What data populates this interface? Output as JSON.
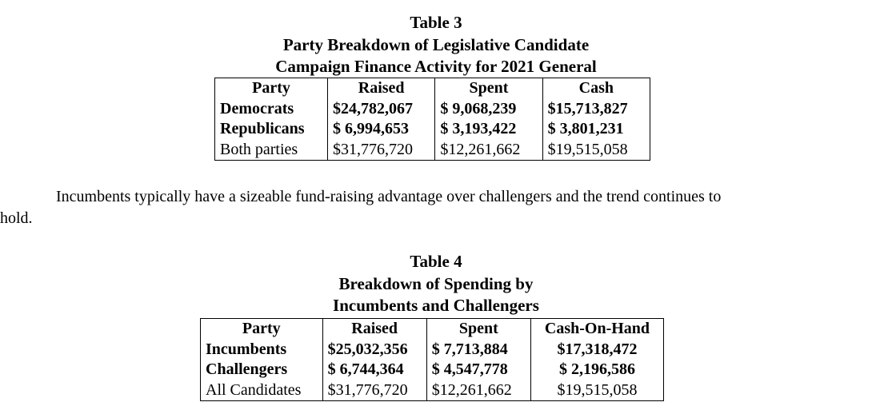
{
  "table3": {
    "caption": [
      "Table 3",
      "Party Breakdown of Legislative Candidate",
      "Campaign Finance Activity for 2021 General"
    ],
    "headers": [
      "Party",
      "Raised",
      "Spent",
      "Cash"
    ],
    "rows": [
      [
        "Democrats",
        "$24,782,067",
        "$ 9,068,239",
        "$15,713,827"
      ],
      [
        "Republicans",
        "$ 6,994,653",
        "$ 3,193,422",
        "$ 3,801,231"
      ],
      [
        "Both parties",
        "$31,776,720",
        "$12,261,662",
        "$19,515,058"
      ]
    ]
  },
  "paragraph": {
    "line1": "Incumbents typically have a sizeable fund-raising advantage over challengers and the trend continues to",
    "line2": "hold."
  },
  "table4": {
    "caption": [
      "Table 4",
      "Breakdown of Spending by",
      "Incumbents and Challengers"
    ],
    "headers": [
      "Party",
      "Raised",
      "Spent",
      "Cash-On-Hand"
    ],
    "rows": [
      [
        "Incumbents",
        "$25,032,356",
        "$ 7,713,884",
        "$17,318,472"
      ],
      [
        "Challengers",
        "$ 6,744,364",
        "$ 4,547,778",
        "$ 2,196,586"
      ],
      [
        "All Candidates",
        "$31,776,720",
        "$12,261,662",
        "$19,515,058"
      ]
    ]
  }
}
